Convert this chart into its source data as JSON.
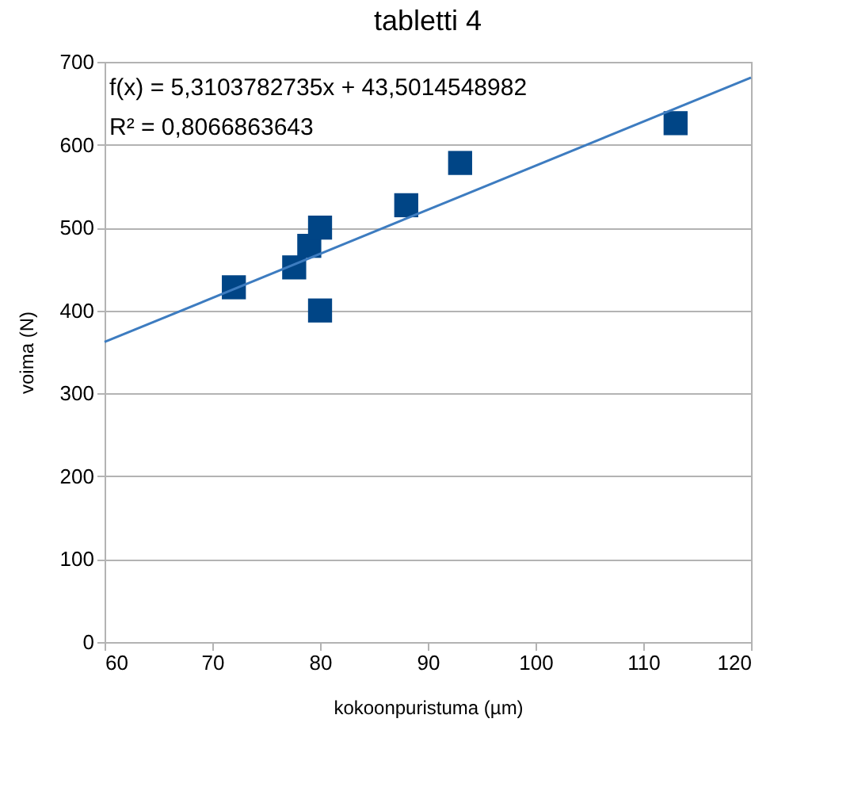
{
  "chart_data": {
    "type": "scatter",
    "title": "tabletti 4",
    "xlabel": "kokoonpuristuma (µm)",
    "ylabel": "voima (N)",
    "xlim": [
      60,
      120
    ],
    "ylim": [
      0,
      700
    ],
    "xticks": [
      60,
      70,
      80,
      90,
      100,
      110,
      120
    ],
    "yticks": [
      0,
      100,
      200,
      300,
      400,
      500,
      600,
      700
    ],
    "grid": "y",
    "marker": "square",
    "annotations": [
      "f(x) = 5,3103782735x + 43,5014548982",
      "R² = 0,8066863643"
    ],
    "series": [
      {
        "color": "#004586",
        "x": [
          72,
          77.6,
          79,
          80,
          80,
          88,
          93,
          113
        ],
        "values": [
          428,
          452,
          478,
          500,
          400,
          527,
          578,
          626
        ]
      },
      {
        "type": "line",
        "color": "#3d7cc0",
        "x": [
          60,
          120
        ],
        "values": [
          362,
          681
        ],
        "marker": "none"
      }
    ]
  }
}
